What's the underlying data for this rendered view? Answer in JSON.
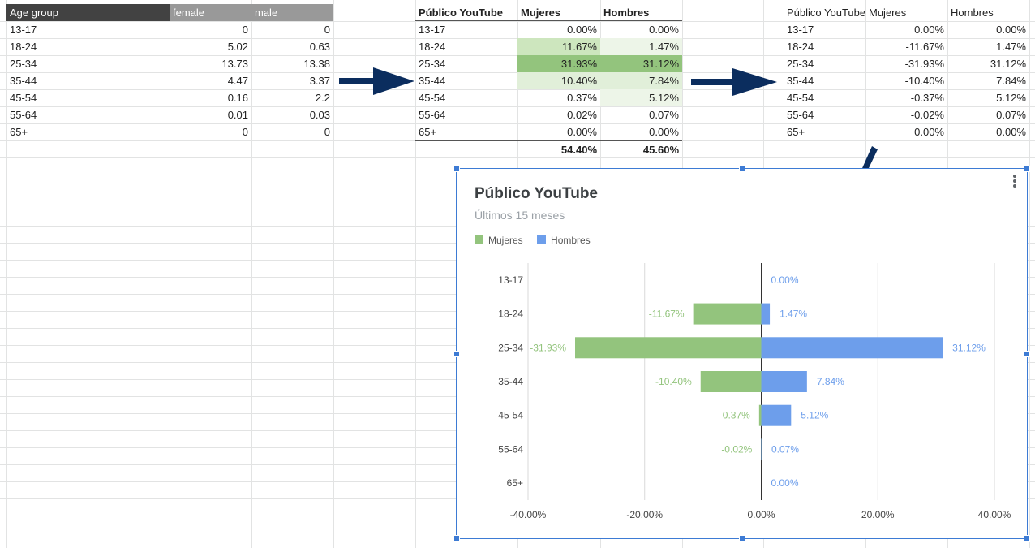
{
  "colors": {
    "mujeres": "#93c47d",
    "hombres": "#6d9eeb",
    "arrow": "#0b2d5e",
    "selection": "#3d7bd4"
  },
  "table1": {
    "headers": [
      "Age group",
      "female",
      "male"
    ],
    "rows": [
      [
        "13-17",
        "0",
        "0"
      ],
      [
        "18-24",
        "5.02",
        "0.63"
      ],
      [
        "25-34",
        "13.73",
        "13.38"
      ],
      [
        "35-44",
        "4.47",
        "3.37"
      ],
      [
        "45-54",
        "0.16",
        "2.2"
      ],
      [
        "55-64",
        "0.01",
        "0.03"
      ],
      [
        "65+",
        "0",
        "0"
      ]
    ]
  },
  "table2": {
    "headers": [
      "Público YouTube",
      "Mujeres",
      "Hombres"
    ],
    "rows": [
      [
        "13-17",
        "0.00%",
        "0.00%"
      ],
      [
        "18-24",
        "11.67%",
        "1.47%"
      ],
      [
        "25-34",
        "31.93%",
        "31.12%"
      ],
      [
        "35-44",
        "10.40%",
        "7.84%"
      ],
      [
        "45-54",
        "0.37%",
        "5.12%"
      ],
      [
        "55-64",
        "0.02%",
        "0.07%"
      ],
      [
        "65+",
        "0.00%",
        "0.00%"
      ]
    ],
    "totals": [
      "54.40%",
      "45.60%"
    ]
  },
  "table3": {
    "headers": [
      "Público YouTube",
      "Mujeres",
      "Hombres"
    ],
    "rows": [
      [
        "13-17",
        "0.00%",
        "0.00%"
      ],
      [
        "18-24",
        "-11.67%",
        "1.47%"
      ],
      [
        "25-34",
        "-31.93%",
        "31.12%"
      ],
      [
        "35-44",
        "-10.40%",
        "7.84%"
      ],
      [
        "45-54",
        "-0.37%",
        "5.12%"
      ],
      [
        "55-64",
        "-0.02%",
        "0.07%"
      ],
      [
        "65+",
        "0.00%",
        "0.00%"
      ]
    ]
  },
  "chart_data": {
    "type": "bar",
    "orientation": "horizontal",
    "title": "Público YouTube",
    "subtitle": "Últimos 15 meses",
    "legend_position": "top-left",
    "categories": [
      "13-17",
      "18-24",
      "25-34",
      "35-44",
      "45-54",
      "55-64",
      "65+"
    ],
    "series": [
      {
        "name": "Mujeres",
        "color": "#93c47d",
        "values": [
          0,
          -11.67,
          -31.93,
          -10.4,
          -0.37,
          -0.02,
          0
        ],
        "labels": [
          "",
          "-11.67%",
          "-31.93%",
          "-10.40%",
          "-0.37%",
          "-0.02%",
          ""
        ]
      },
      {
        "name": "Hombres",
        "color": "#6d9eeb",
        "values": [
          0,
          1.47,
          31.12,
          7.84,
          5.12,
          0.07,
          0
        ],
        "labels": [
          "0.00%",
          "1.47%",
          "31.12%",
          "7.84%",
          "5.12%",
          "0.07%",
          "0.00%"
        ]
      }
    ],
    "xlim": [
      -40,
      40
    ],
    "xticks": [
      -40,
      -20,
      0,
      20,
      40
    ],
    "xtick_labels": [
      "-40.00%",
      "-20.00%",
      "0.00%",
      "20.00%",
      "40.00%"
    ],
    "grid": true
  }
}
